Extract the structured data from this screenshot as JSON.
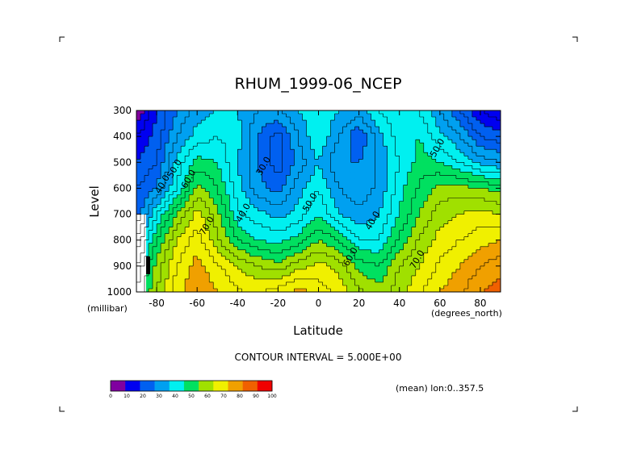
{
  "chart_data": {
    "type": "heatmap",
    "title": "RHUM_1999-06_NCEP",
    "xlabel": "Latitude",
    "ylabel": "Level",
    "x_units": "(degrees_north)",
    "y_units": "(millibar)",
    "xlim": [
      -90,
      90
    ],
    "ylim": [
      1000,
      300
    ],
    "x_ticks": [
      "-80",
      "-60",
      "-40",
      "-20",
      "0",
      "20",
      "40",
      "60",
      "80"
    ],
    "x_tick_values": [
      -80,
      -60,
      -40,
      -20,
      0,
      20,
      40,
      60,
      80
    ],
    "y_ticks": [
      "300",
      "400",
      "500",
      "600",
      "700",
      "800",
      "900",
      "1000"
    ],
    "y_tick_values": [
      300,
      400,
      500,
      600,
      700,
      800,
      900,
      1000
    ],
    "contour_interval_label": "CONTOUR INTERVAL = 5.000E+00",
    "subtitle": "(mean) lon:0..357.5",
    "colorbar": {
      "ticks": [
        "0",
        "10",
        "20",
        "30",
        "40",
        "50",
        "60",
        "70",
        "80",
        "90",
        "100"
      ],
      "colors": [
        "#8000a0",
        "#0000f0",
        "#0060f0",
        "#00a0f0",
        "#00f0f0",
        "#00e060",
        "#a0e000",
        "#f0f000",
        "#f0a000",
        "#f06000",
        "#f00000"
      ]
    },
    "contour_labels": [
      {
        "text": "30.0",
        "lat": -26,
        "lev": 520
      },
      {
        "text": "40.0",
        "lat": -36,
        "lev": 700
      },
      {
        "text": "50.0",
        "lat": -3,
        "lev": 660
      },
      {
        "text": "40.0",
        "lat": 28,
        "lev": 730
      },
      {
        "text": "50.0",
        "lat": 60,
        "lev": 450
      },
      {
        "text": "60.0",
        "lat": -63,
        "lev": 570
      },
      {
        "text": "50.0",
        "lat": -70,
        "lev": 530
      },
      {
        "text": "40.0",
        "lat": -76,
        "lev": 590
      },
      {
        "text": "70.0",
        "lat": -54,
        "lev": 750
      },
      {
        "text": "60.0",
        "lat": 17,
        "lev": 870
      },
      {
        "text": "70.0",
        "lat": 50,
        "lev": 880
      }
    ],
    "sample_grid": {
      "lat": [
        -90,
        -80,
        -70,
        -60,
        -50,
        -40,
        -30,
        -20,
        -10,
        0,
        10,
        20,
        30,
        40,
        50,
        60,
        70,
        80,
        90
      ],
      "lev": [
        300,
        400,
        500,
        600,
        700,
        800,
        900,
        1000
      ],
      "rhum": [
        [
          5,
          20,
          30,
          38,
          40,
          40,
          35,
          35,
          40,
          45,
          40,
          38,
          45,
          50,
          45,
          35,
          25,
          15,
          10
        ],
        [
          15,
          22,
          35,
          42,
          45,
          42,
          30,
          22,
          35,
          45,
          35,
          25,
          38,
          48,
          50,
          42,
          35,
          25,
          22
        ],
        [
          20,
          25,
          42,
          52,
          50,
          40,
          30,
          22,
          32,
          40,
          30,
          30,
          36,
          45,
          52,
          50,
          45,
          38,
          35
        ],
        [
          25,
          30,
          45,
          62,
          55,
          42,
          32,
          28,
          38,
          45,
          35,
          32,
          36,
          48,
          56,
          62,
          62,
          60,
          58
        ],
        [
          25,
          45,
          60,
          72,
          62,
          46,
          42,
          38,
          42,
          50,
          40,
          36,
          40,
          50,
          60,
          68,
          70,
          72,
          70
        ],
        [
          35,
          55,
          70,
          78,
          66,
          55,
          50,
          48,
          52,
          60,
          55,
          45,
          45,
          56,
          66,
          72,
          75,
          78,
          80
        ],
        [
          45,
          62,
          75,
          82,
          76,
          70,
          65,
          62,
          68,
          72,
          68,
          58,
          55,
          65,
          70,
          76,
          80,
          85,
          88
        ],
        [
          50,
          65,
          78,
          85,
          80,
          76,
          74,
          78,
          82,
          78,
          74,
          66,
          62,
          68,
          74,
          80,
          84,
          90,
          92
        ]
      ]
    }
  }
}
